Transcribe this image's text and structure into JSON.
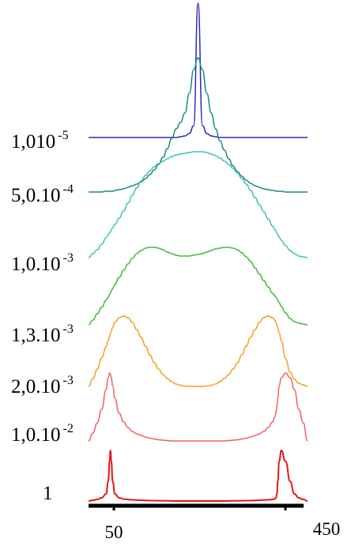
{
  "chart_data": {
    "type": "line",
    "title": "",
    "xlabel": "",
    "ylabel": "",
    "x_ticks": [
      "50",
      "450"
    ],
    "x": [
      0,
      10,
      20,
      30,
      40,
      45,
      48,
      50,
      52,
      55,
      60,
      70,
      80,
      90,
      100,
      110,
      120,
      130,
      140,
      150,
      160,
      170,
      180,
      190,
      200,
      210,
      220,
      230,
      240,
      250,
      260,
      270,
      280,
      290,
      300,
      310,
      320,
      330,
      340,
      350,
      360,
      370,
      380,
      390,
      400,
      410,
      420,
      425,
      428,
      430,
      432,
      435,
      440,
      450,
      460,
      470,
      480,
      490,
      500
    ],
    "series": [
      {
        "label_base": "1,010",
        "label_exp": "-5",
        "color": "#2a2ab8",
        "values": [
          0.0,
          0.0,
          0.0,
          0.0,
          0.0,
          0.0,
          0.0,
          0.0,
          0.0,
          0.0,
          0.0,
          0.0,
          0.0,
          0.0,
          0.0,
          0.0,
          0.0,
          0.0,
          0.0,
          0.0,
          0.0,
          0.0,
          0.0,
          0.0,
          0.0,
          0.1,
          0.2,
          0.5,
          1.5,
          17.0,
          1.5,
          0.5,
          0.2,
          0.1,
          0.0,
          0.0,
          0.0,
          0.0,
          0.0,
          0.0,
          0.0,
          0.0,
          0.0,
          0.0,
          0.0,
          0.0,
          0.0,
          0.0,
          0.0,
          0.0,
          0.0,
          0.0,
          0.0,
          0.0,
          0.0,
          0.0,
          0.0,
          0.0,
          0.0
        ]
      },
      {
        "label_base": "5,0.10",
        "label_exp": "-4",
        "color": "#1a8a82",
        "values": [
          0.0,
          0.0,
          0.0,
          0.0,
          0.1,
          0.1,
          0.1,
          0.1,
          0.1,
          0.1,
          0.2,
          0.3,
          0.4,
          0.6,
          0.8,
          1.0,
          1.3,
          1.7,
          2.2,
          2.8,
          3.5,
          4.4,
          5.5,
          6.8,
          8.0,
          8.8,
          10.0,
          12.5,
          15.5,
          17.0,
          15.5,
          12.5,
          10.0,
          8.0,
          6.5,
          5.3,
          4.2,
          3.3,
          2.6,
          2.0,
          1.5,
          1.1,
          0.8,
          0.6,
          0.4,
          0.3,
          0.2,
          0.2,
          0.1,
          0.1,
          0.1,
          0.1,
          0.1,
          0.0,
          0.0,
          0.0,
          0.0,
          0.0,
          0.0
        ]
      },
      {
        "label_base": "1,0.10",
        "label_exp": "-3",
        "color": "#3dc2b6",
        "values": [
          0.0,
          0.5,
          1.0,
          1.7,
          2.5,
          2.9,
          3.1,
          3.3,
          3.5,
          3.8,
          4.2,
          5.0,
          5.9,
          6.9,
          7.9,
          8.8,
          9.7,
          10.4,
          11.0,
          11.5,
          11.9,
          12.2,
          12.5,
          12.8,
          13.0,
          13.1,
          13.2,
          13.3,
          13.4,
          13.4,
          13.4,
          13.3,
          13.1,
          12.9,
          12.6,
          12.2,
          11.8,
          11.3,
          10.7,
          10.0,
          9.3,
          8.5,
          7.6,
          6.7,
          5.8,
          4.9,
          4.0,
          3.6,
          3.3,
          3.1,
          2.9,
          2.6,
          2.2,
          1.5,
          0.9,
          0.5,
          0.2,
          0.1,
          0.0
        ]
      },
      {
        "label_base": "1,3.10",
        "label_exp": "-3",
        "color": "#44b83a",
        "values": [
          0.0,
          0.6,
          1.4,
          2.2,
          3.1,
          3.5,
          3.8,
          4.0,
          4.3,
          4.6,
          5.1,
          6.0,
          6.9,
          7.7,
          8.4,
          9.0,
          9.4,
          9.7,
          9.8,
          9.8,
          9.7,
          9.5,
          9.2,
          9.0,
          8.8,
          8.7,
          8.7,
          8.7,
          8.8,
          8.9,
          9.0,
          9.2,
          9.4,
          9.6,
          9.7,
          9.8,
          9.8,
          9.7,
          9.5,
          9.1,
          8.6,
          8.0,
          7.2,
          6.4,
          5.6,
          4.8,
          4.0,
          3.7,
          3.5,
          3.3,
          3.1,
          2.8,
          2.3,
          1.5,
          0.8,
          0.4,
          0.2,
          0.1,
          0.0
        ]
      },
      {
        "label_base": "2,0.10",
        "label_exp": "-3",
        "color": "#f0a020",
        "values": [
          0.0,
          1.0,
          2.2,
          3.6,
          5.0,
          5.8,
          6.3,
          6.7,
          7.0,
          7.5,
          8.1,
          8.7,
          8.9,
          8.7,
          8.1,
          7.2,
          6.2,
          5.1,
          4.0,
          3.0,
          2.2,
          1.5,
          1.0,
          0.6,
          0.3,
          0.15,
          0.05,
          0.0,
          0.0,
          0.0,
          0.0,
          0.05,
          0.15,
          0.3,
          0.6,
          1.0,
          1.5,
          2.2,
          3.0,
          4.0,
          5.1,
          6.2,
          7.2,
          8.1,
          8.7,
          8.9,
          8.7,
          8.4,
          8.1,
          7.8,
          7.4,
          6.8,
          5.8,
          3.5,
          1.8,
          0.9,
          0.4,
          0.2,
          0.0
        ]
      },
      {
        "label_base": "1,0.10",
        "label_exp": "-2",
        "color": "#f06060",
        "values": [
          0.0,
          1.0,
          2.3,
          4.0,
          6.5,
          8.0,
          8.6,
          8.4,
          8.0,
          7.0,
          5.4,
          3.5,
          2.4,
          1.7,
          1.2,
          0.9,
          0.7,
          0.5,
          0.35,
          0.25,
          0.15,
          0.1,
          0.05,
          0.0,
          0.0,
          0.0,
          0.0,
          0.0,
          0.0,
          0.0,
          0.0,
          0.0,
          0.0,
          0.0,
          0.0,
          0.0,
          0.05,
          0.1,
          0.15,
          0.25,
          0.35,
          0.5,
          0.7,
          0.9,
          1.2,
          1.7,
          2.4,
          3.0,
          3.6,
          4.4,
          5.4,
          7.0,
          8.0,
          8.6,
          8.0,
          6.5,
          4.0,
          2.3,
          0.0
        ]
      },
      {
        "label_base": "1",
        "label_exp": "",
        "color": "#e01818",
        "values": [
          0.0,
          0.1,
          0.2,
          0.4,
          0.9,
          2.5,
          5.0,
          6.4,
          5.0,
          2.5,
          0.9,
          0.4,
          0.25,
          0.2,
          0.15,
          0.12,
          0.1,
          0.08,
          0.06,
          0.05,
          0.04,
          0.03,
          0.02,
          0.01,
          0.0,
          0.0,
          0.0,
          0.0,
          0.0,
          0.0,
          0.0,
          0.0,
          0.0,
          0.0,
          0.0,
          0.0,
          0.01,
          0.02,
          0.03,
          0.04,
          0.05,
          0.06,
          0.08,
          0.1,
          0.12,
          0.15,
          0.2,
          0.25,
          0.4,
          0.9,
          2.5,
          5.0,
          6.4,
          5.0,
          2.5,
          0.9,
          0.4,
          0.2,
          0.0
        ]
      }
    ]
  }
}
